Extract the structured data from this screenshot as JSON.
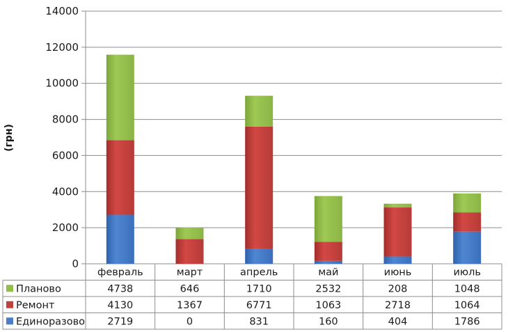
{
  "chart_data": {
    "type": "bar",
    "stacked": true,
    "ylabel": "(грн)",
    "ylim": [
      0,
      14000
    ],
    "yticks": [
      0,
      2000,
      4000,
      6000,
      8000,
      10000,
      12000,
      14000
    ],
    "grid": true,
    "legend": "data-table-left",
    "categories": [
      "февраль",
      "март",
      "апрель",
      "май",
      "июнь",
      "июль"
    ],
    "series": [
      {
        "name": "Единоразово",
        "color": "#4a7ec7",
        "values": [
          2719,
          0,
          831,
          160,
          404,
          1786
        ]
      },
      {
        "name": "Ремонт",
        "color": "#c0403e",
        "values": [
          4130,
          1367,
          6771,
          1063,
          2718,
          1064
        ]
      },
      {
        "name": "Планово",
        "color": "#94bd4c",
        "values": [
          4738,
          646,
          1710,
          2532,
          208,
          1048
        ]
      }
    ],
    "table_order": [
      2,
      1,
      0
    ]
  }
}
